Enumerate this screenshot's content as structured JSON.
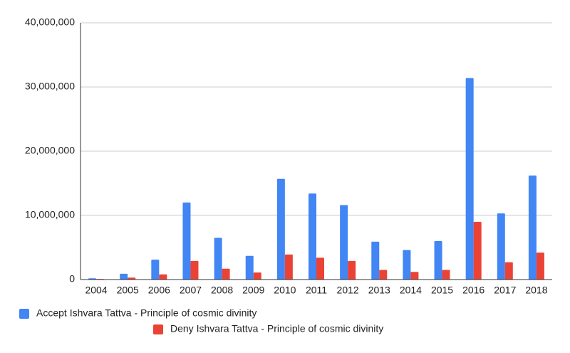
{
  "chart_data": {
    "type": "bar",
    "categories": [
      "2004",
      "2005",
      "2006",
      "2007",
      "2008",
      "2009",
      "2010",
      "2011",
      "2012",
      "2013",
      "2014",
      "2015",
      "2016",
      "2017",
      "2018"
    ],
    "series": [
      {
        "name": "Accept Ishvara Tattva - Principle of cosmic divinity",
        "color": "#4285f4",
        "values": [
          200000,
          900000,
          3100000,
          12000000,
          6500000,
          3700000,
          15700000,
          13400000,
          11600000,
          5900000,
          4600000,
          6000000,
          31400000,
          10300000,
          16200000
        ]
      },
      {
        "name": "Deny Ishvara Tattva - Principle of cosmic divinity",
        "color": "#ea4335",
        "values": [
          100000,
          300000,
          800000,
          2900000,
          1700000,
          1100000,
          3900000,
          3400000,
          2900000,
          1500000,
          1200000,
          1500000,
          9000000,
          2700000,
          4200000
        ]
      }
    ],
    "ylim": [
      0,
      40000000
    ],
    "yticks": [
      {
        "value": 0,
        "label": "0"
      },
      {
        "value": 10000000,
        "label": "10,000,000"
      },
      {
        "value": 20000000,
        "label": "20,000,000"
      },
      {
        "value": 30000000,
        "label": "30,000,000"
      },
      {
        "value": 40000000,
        "label": "40,000,000"
      }
    ],
    "grid": true,
    "legend": "bottom"
  }
}
